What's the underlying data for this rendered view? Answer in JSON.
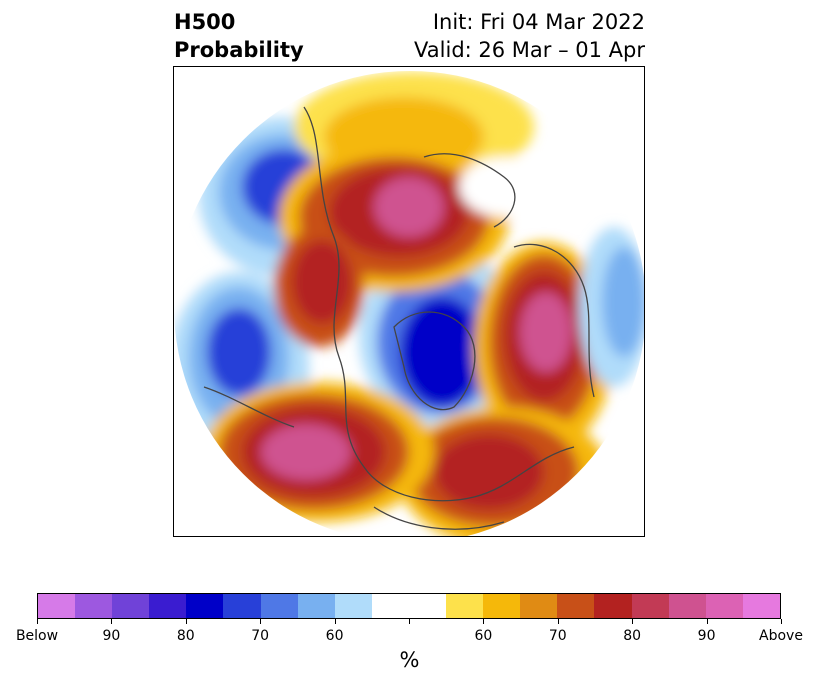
{
  "header": {
    "title_line1": "H500",
    "title_line2": "Probability",
    "init": "Init: Fri 04 Mar 2022",
    "valid": "Valid: 26 Mar – 01 Apr"
  },
  "colorbar": {
    "colors": [
      "#d67ae8",
      "#9d58e0",
      "#7042d8",
      "#3a1cd0",
      "#0000c8",
      "#2840d8",
      "#4f78e6",
      "#78b0f0",
      "#b0dcfa",
      "#ffffff",
      "#ffffff",
      "#fde14b",
      "#f5b80a",
      "#e08b14",
      "#c85018",
      "#b32220",
      "#c23a55",
      "#cf5290",
      "#dc62b4",
      "#e679df"
    ],
    "tick_labels": [
      "Below",
      "90",
      "80",
      "70",
      "60",
      "",
      "60",
      "70",
      "80",
      "90",
      "Above"
    ],
    "units": "%"
  },
  "map": {
    "projection": "north-polar-stereographic",
    "legend_meaning": "below / above normal 500 hPa height probability"
  }
}
